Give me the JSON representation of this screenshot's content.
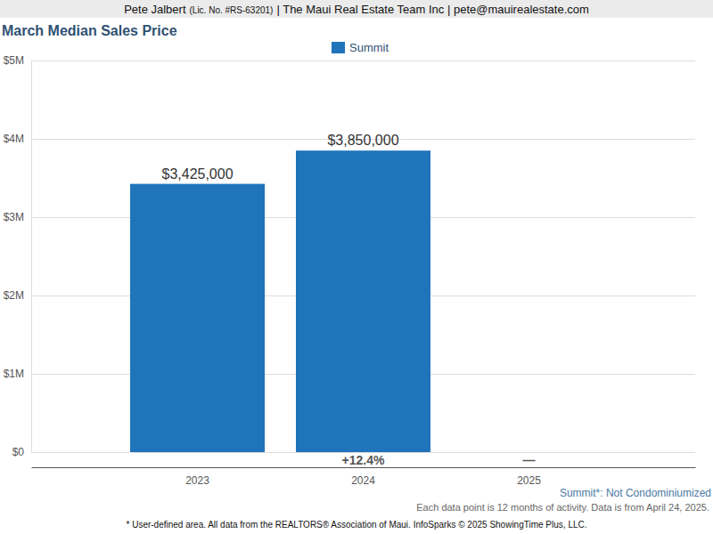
{
  "header": {
    "agent": "Pete Jalbert",
    "license": "(Lic. No. #RS-63201)",
    "company": "| The Maui Real Estate Team Inc | pete@mauirealestate.com"
  },
  "chart_data": {
    "type": "bar",
    "title": "March Median Sales Price",
    "categories": [
      "2023",
      "2024",
      "2025"
    ],
    "series": [
      {
        "name": "Summit",
        "color": "#1f74ba",
        "values": [
          3425000,
          3850000,
          null
        ],
        "value_labels": [
          "$3,425,000",
          "$3,850,000",
          null
        ]
      }
    ],
    "ylim": [
      0,
      5000000
    ],
    "yticks": [
      {
        "value": 0,
        "label": "$0"
      },
      {
        "value": 1000000,
        "label": "$1M"
      },
      {
        "value": 2000000,
        "label": "$2M"
      },
      {
        "value": 3000000,
        "label": "$3M"
      },
      {
        "value": 4000000,
        "label": "$4M"
      },
      {
        "value": 5000000,
        "label": "$5M"
      }
    ],
    "grid": true,
    "legend": "top",
    "data_labels": true,
    "annotations": [
      {
        "text": "+12.4%",
        "category": "2024"
      },
      {
        "text": "—",
        "category": "2025"
      }
    ]
  },
  "footnotes": [
    "Summit*: Not Condominiumized",
    "Each data point is 12 months of activity. Data is from April 24, 2025.",
    "* User-defined area. All data from the REALTORS® Association of Maui. InfoSparks © 2025 ShowingTime Plus, LLC."
  ]
}
